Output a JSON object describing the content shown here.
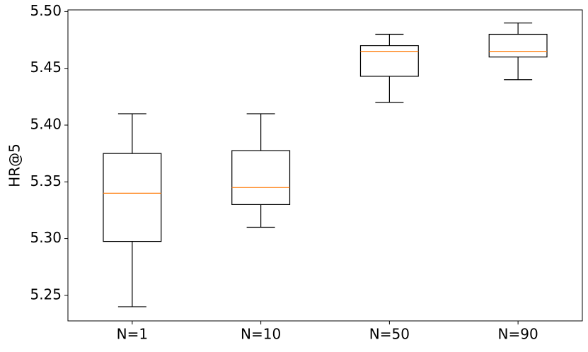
{
  "chart_data": {
    "type": "box",
    "y_label": "HR@5",
    "categories": [
      "N=1",
      "N=10",
      "N=50",
      "N=90"
    ],
    "boxes": [
      {
        "min": 5.24,
        "q1": 5.2975,
        "median": 5.34,
        "q3": 5.375,
        "max": 5.41
      },
      {
        "min": 5.31,
        "q1": 5.33,
        "median": 5.345,
        "q3": 5.3775,
        "max": 5.41
      },
      {
        "min": 5.42,
        "q1": 5.443,
        "median": 5.465,
        "q3": 5.47,
        "max": 5.48
      },
      {
        "min": 5.44,
        "q1": 5.46,
        "median": 5.465,
        "q3": 5.48,
        "max": 5.49
      }
    ],
    "box_color": "#000000",
    "median_color": "#ff7f0e",
    "ylim": [
      5.2275,
      5.5015
    ],
    "yticks": [
      5.25,
      {
        "value": 5.3,
        "label": "5.30"
      },
      5.35,
      {
        "value": 5.4,
        "label": "5.40"
      },
      5.45,
      {
        "value": 5.5,
        "label": "5.50"
      }
    ],
    "grid": false
  }
}
